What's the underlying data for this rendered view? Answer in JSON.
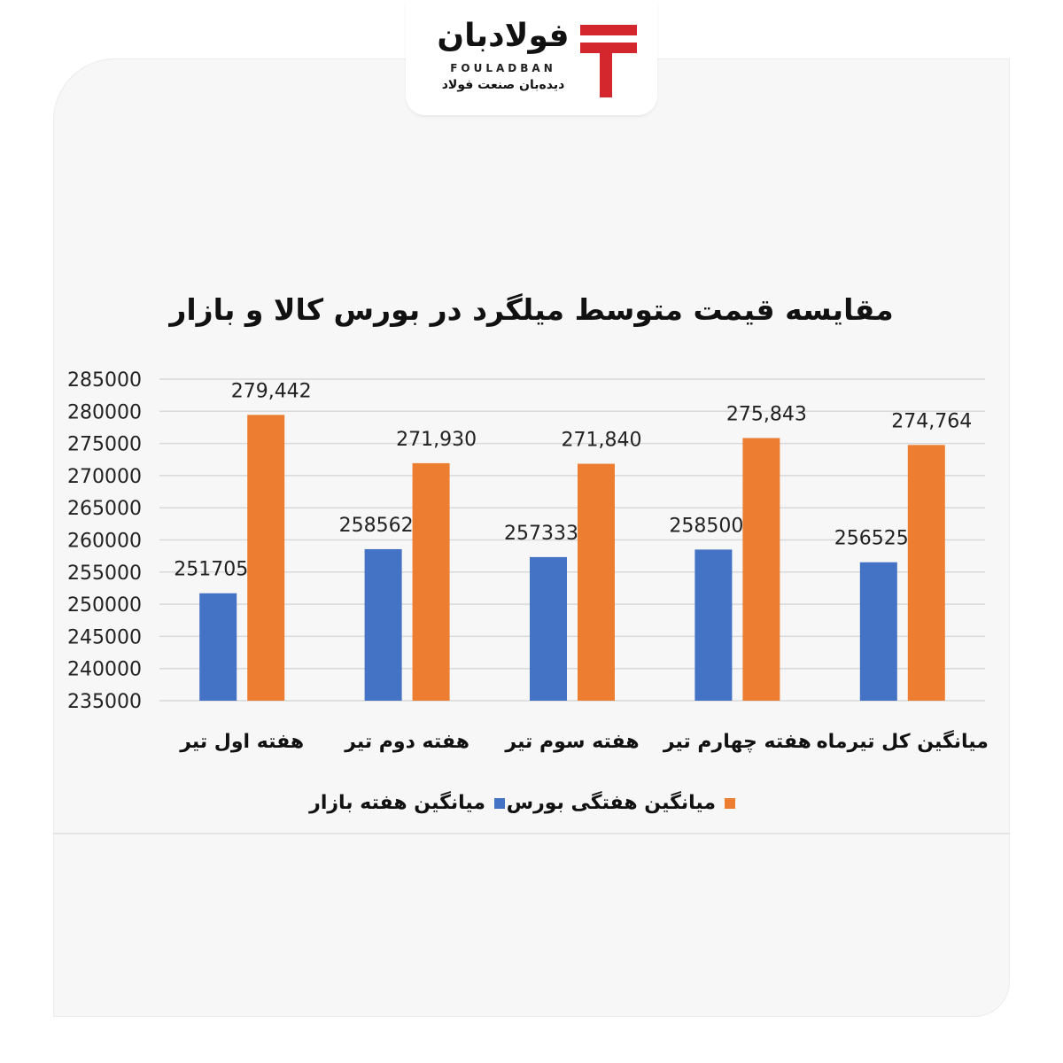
{
  "logo": {
    "name": "فولادبان",
    "latin": "FOULADBAN",
    "tagline": "دیده‌بان صنعت فولاد",
    "color": "#d3262d"
  },
  "chart_data": {
    "type": "bar",
    "title": "مقایسه قیمت متوسط میلگرد در بورس کالا و بازار",
    "categories": [
      "هفته اول تیر",
      "هفته دوم تیر",
      "هفته سوم تیر",
      "هفته چهارم تیر",
      "میانگین کل تیرماه"
    ],
    "series": [
      {
        "name": "میانگین هفته بازار",
        "color": "#4472c4",
        "values": [
          251705,
          258562,
          257333,
          258500,
          256525
        ],
        "labels": [
          "251705",
          "258562",
          "257333",
          "258500",
          "256525"
        ]
      },
      {
        "name": "میانگین هفتگی بورس",
        "color": "#ed7d31",
        "values": [
          279442,
          271930,
          271840,
          275843,
          274764
        ],
        "labels": [
          "279,442",
          "271,930",
          "271,840",
          "275,843",
          "274,764"
        ]
      }
    ],
    "ylim": [
      235000,
      285000
    ],
    "yticks": [
      285000,
      280000,
      275000,
      270000,
      265000,
      260000,
      255000,
      250000,
      245000,
      240000,
      235000
    ],
    "grid": true,
    "legend_position": "bottom"
  }
}
